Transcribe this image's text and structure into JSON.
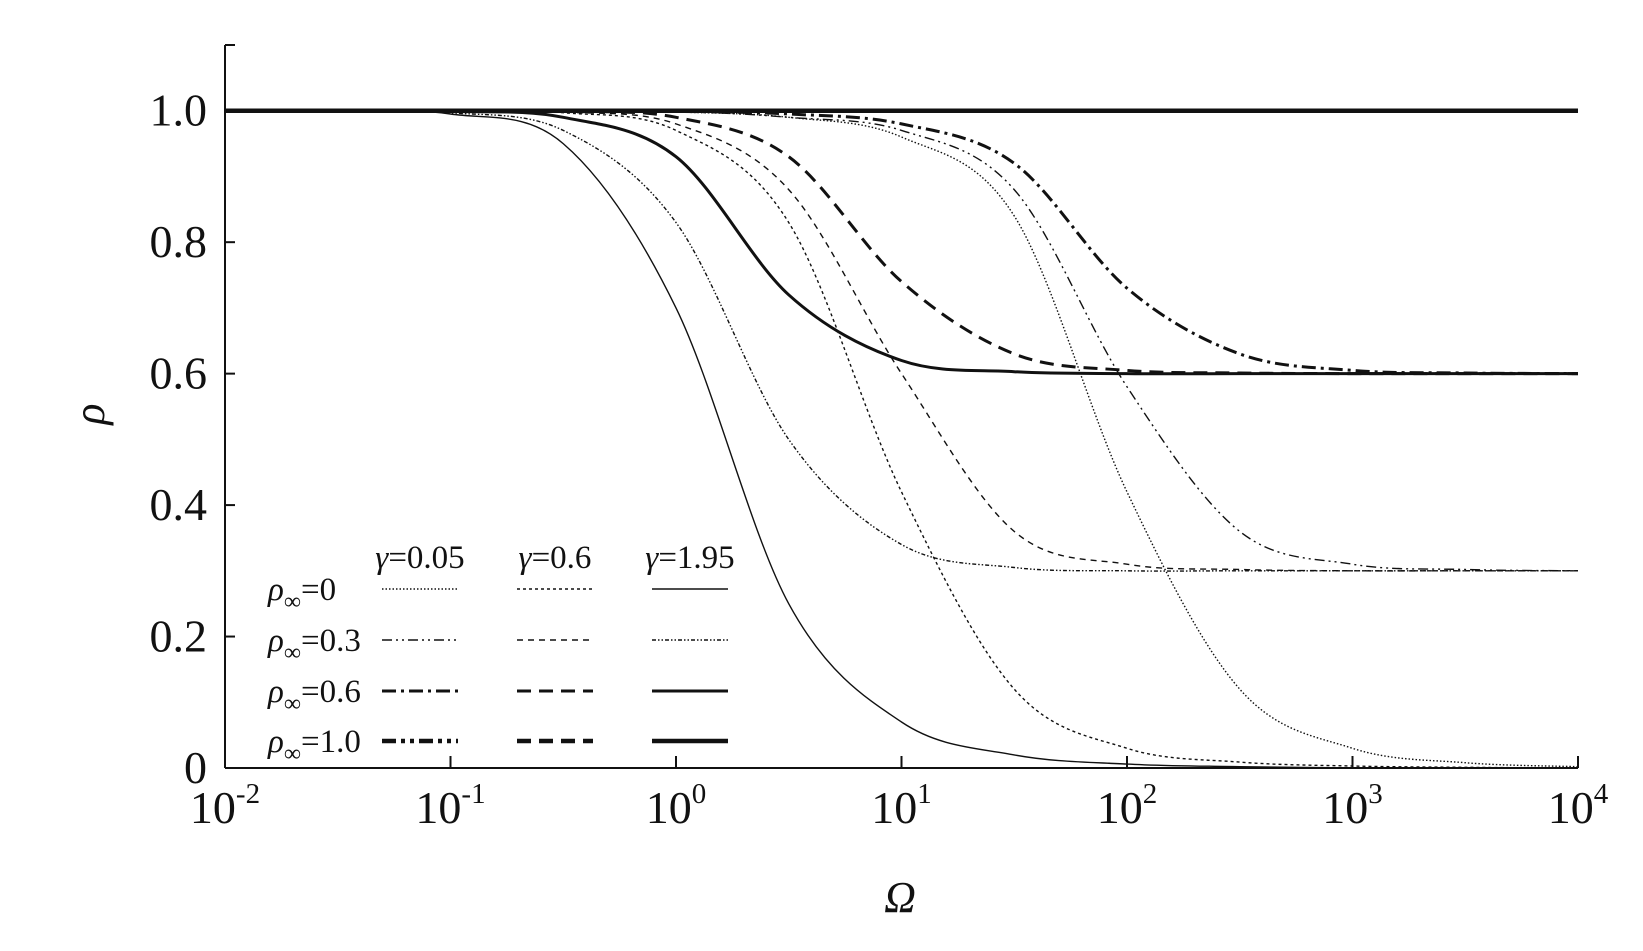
{
  "chart_data": {
    "type": "line",
    "xlabel": "Ω",
    "ylabel": "ρ",
    "x_scale": "log",
    "xlim": [
      0.01,
      10000
    ],
    "ylim": [
      0,
      1.1
    ],
    "x_ticks": [
      {
        "base": "10",
        "exp": "-2"
      },
      {
        "base": "10",
        "exp": "-1"
      },
      {
        "base": "10",
        "exp": "0"
      },
      {
        "base": "10",
        "exp": "1"
      },
      {
        "base": "10",
        "exp": "2"
      },
      {
        "base": "10",
        "exp": "3"
      },
      {
        "base": "10",
        "exp": "4"
      }
    ],
    "y_ticks": [
      "0",
      "0.2",
      "0.4",
      "0.6",
      "0.8",
      "1.0"
    ],
    "y_tick_values": [
      0,
      0.2,
      0.4,
      0.6,
      0.8,
      1.0
    ],
    "grid": false,
    "legend": {
      "placement": "bottom-left",
      "columns": [
        "γ=0.05",
        "γ=0.6",
        "γ=1.95"
      ],
      "rows": [
        {
          "prefix": "ρ",
          "sub": "∞",
          "suffix": "=0"
        },
        {
          "prefix": "ρ",
          "sub": "∞",
          "suffix": "=0.3"
        },
        {
          "prefix": "ρ",
          "sub": "∞",
          "suffix": "=0.6"
        },
        {
          "prefix": "ρ",
          "sub": "∞",
          "suffix": "=1.0"
        }
      ]
    },
    "series_x": [
      0.01,
      0.0316,
      0.1,
      0.3162,
      1,
      3.162,
      10,
      31.62,
      100,
      316.2,
      1000,
      3162,
      10000
    ],
    "series": [
      {
        "rho_inf": 0,
        "gamma": 0.05,
        "y": [
          1.0,
          1.0,
          1.0,
          1.0,
          0.998,
          0.99,
          0.96,
          0.84,
          0.42,
          0.12,
          0.03,
          0.008,
          0.002
        ]
      },
      {
        "rho_inf": 0,
        "gamma": 0.6,
        "y": [
          1.0,
          1.0,
          1.0,
          0.997,
          0.97,
          0.83,
          0.42,
          0.12,
          0.03,
          0.009,
          0.003,
          0.001,
          0.0
        ]
      },
      {
        "rho_inf": 0,
        "gamma": 1.95,
        "y": [
          1.0,
          1.0,
          0.995,
          0.95,
          0.7,
          0.25,
          0.07,
          0.02,
          0.006,
          0.002,
          0.0,
          0.0,
          0.0
        ]
      },
      {
        "rho_inf": 0.3,
        "gamma": 0.05,
        "y": [
          1.0,
          1.0,
          1.0,
          1.0,
          0.999,
          0.99,
          0.97,
          0.88,
          0.58,
          0.36,
          0.31,
          0.302,
          0.3
        ]
      },
      {
        "rho_inf": 0.3,
        "gamma": 0.6,
        "y": [
          1.0,
          1.0,
          1.0,
          0.998,
          0.98,
          0.88,
          0.6,
          0.36,
          0.31,
          0.302,
          0.3,
          0.3,
          0.3
        ]
      },
      {
        "rho_inf": 0.3,
        "gamma": 1.95,
        "y": [
          1.0,
          1.0,
          0.997,
          0.97,
          0.83,
          0.5,
          0.34,
          0.305,
          0.3,
          0.3,
          0.3,
          0.3,
          0.3
        ]
      },
      {
        "rho_inf": 0.6,
        "gamma": 0.05,
        "y": [
          1.0,
          1.0,
          1.0,
          1.0,
          0.999,
          0.995,
          0.98,
          0.92,
          0.73,
          0.63,
          0.605,
          0.601,
          0.6
        ]
      },
      {
        "rho_inf": 0.6,
        "gamma": 0.6,
        "y": [
          1.0,
          1.0,
          1.0,
          0.999,
          0.99,
          0.93,
          0.74,
          0.63,
          0.605,
          0.601,
          0.6,
          0.6,
          0.6
        ]
      },
      {
        "rho_inf": 0.6,
        "gamma": 1.95,
        "y": [
          1.0,
          1.0,
          0.999,
          0.99,
          0.93,
          0.72,
          0.62,
          0.603,
          0.6,
          0.6,
          0.6,
          0.6,
          0.6
        ]
      },
      {
        "rho_inf": 1.0,
        "gamma": 1.95,
        "y": [
          1.0,
          1.0,
          1.0,
          1.0,
          1.0,
          1.0,
          1.0,
          1.0,
          1.0,
          1.0,
          1.0,
          1.0,
          1.0
        ]
      }
    ],
    "colors": {
      "line": "#111111",
      "axis": "#111111",
      "background": "#ffffff"
    }
  }
}
